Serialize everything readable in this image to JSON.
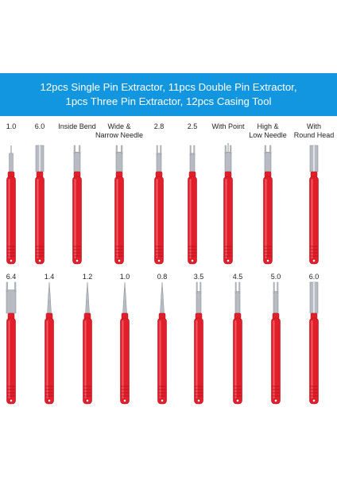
{
  "banner": {
    "line1": "12pcs Single Pin Extractor, 11pcs Double Pin Extractor,",
    "line2": "1pcs Three Pin Extractor, 12pcs Casing Tool"
  },
  "colors": {
    "banner": "#1296e0",
    "handle": "#e01f2b",
    "handle_dark": "#b3121d",
    "metal": "#b8bcc2"
  },
  "row1": [
    {
      "label1": "1.0",
      "label2": "",
      "tip": "needle-fork-thin"
    },
    {
      "label1": "6.0",
      "label2": "",
      "tip": "wide-flat"
    },
    {
      "label1": "Inside Bend",
      "label2": "",
      "tip": "fork"
    },
    {
      "label1": "Wide &",
      "label2": "Narrow Needle",
      "tip": "fork"
    },
    {
      "label1": "2.8",
      "label2": "",
      "tip": "double-prong"
    },
    {
      "label1": "2.5",
      "label2": "",
      "tip": "double-prong"
    },
    {
      "label1": "With Point",
      "label2": "",
      "tip": "fork-point"
    },
    {
      "label1": "High &",
      "label2": "Low Needle",
      "tip": "fork"
    },
    {
      "label1": "With",
      "label2": "Round Head",
      "tip": "wide-flat"
    }
  ],
  "row2": [
    {
      "label1": "6.4",
      "label2": "",
      "tip": "fork-wide"
    },
    {
      "label1": "1.4",
      "label2": "",
      "tip": "needle"
    },
    {
      "label1": "1.2",
      "label2": "",
      "tip": "needle"
    },
    {
      "label1": "1.0",
      "label2": "",
      "tip": "needle"
    },
    {
      "label1": "0.8",
      "label2": "",
      "tip": "needle"
    },
    {
      "label1": "3.5",
      "label2": "",
      "tip": "double-prong"
    },
    {
      "label1": "4.5",
      "label2": "",
      "tip": "double-prong"
    },
    {
      "label1": "5.0",
      "label2": "",
      "tip": "double-prong"
    },
    {
      "label1": "6.0",
      "label2": "",
      "tip": "wide-flat"
    }
  ]
}
